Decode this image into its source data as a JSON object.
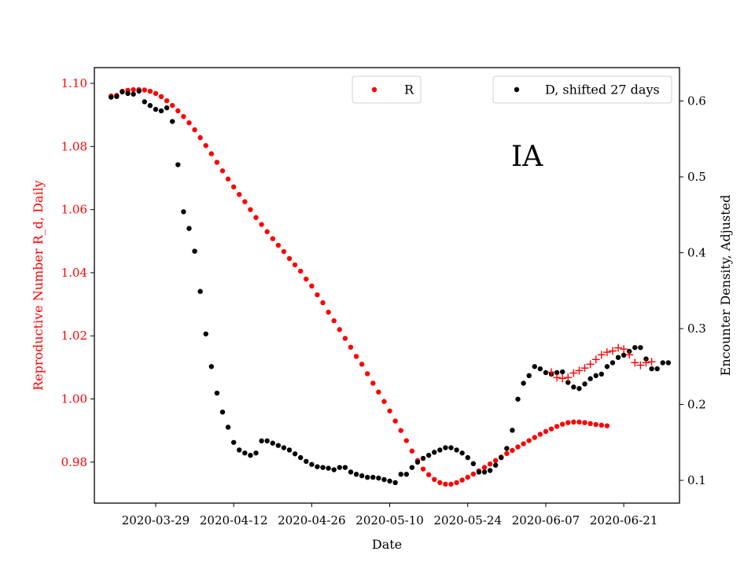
{
  "chart_data": {
    "type": "scatter",
    "annotation": "IA",
    "xlabel": "Date",
    "ylabel_left": "Reproductive Number R_d, Daily",
    "ylabel_right": "Encounter Density, Adjusted",
    "x_tick_labels": [
      "2020-03-29",
      "2020-04-12",
      "2020-04-26",
      "2020-05-10",
      "2020-05-24",
      "2020-06-07",
      "2020-06-21"
    ],
    "y_left_ticks": [
      "0.98",
      "1.00",
      "1.02",
      "1.04",
      "1.06",
      "1.08",
      "1.10"
    ],
    "y_right_ticks": [
      "0.1",
      "0.2",
      "0.3",
      "0.4",
      "0.5",
      "0.6"
    ],
    "y_left_range": [
      0.967,
      1.105
    ],
    "y_right_range": [
      0.07,
      0.644
    ],
    "x_range": [
      "2020-03-18",
      "2020-07-01"
    ],
    "left_axis_color": "#ff0000",
    "series": [
      {
        "name": "R",
        "axis": "left",
        "marker": "dot",
        "color": "#ff0000",
        "start": "2020-03-21",
        "values": [
          1.096,
          1.0962,
          1.0975,
          1.0978,
          1.098,
          1.098,
          1.0979,
          1.0975,
          1.0968,
          1.0958,
          1.0945,
          1.093,
          1.0913,
          1.0895,
          1.0875,
          1.0853,
          1.0828,
          1.0803,
          1.0777,
          1.075,
          1.0723,
          1.0697,
          1.0672,
          1.0648,
          1.0625,
          1.06,
          1.0575,
          1.0553,
          1.053,
          1.0508,
          1.0487,
          1.0467,
          1.0445,
          1.0425,
          1.0405,
          1.038,
          1.0358,
          1.033,
          1.0305,
          1.0275,
          1.0248,
          1.022,
          1.0192,
          1.0164,
          1.0135,
          1.011,
          1.008,
          1.005,
          1.0022,
          0.9992,
          0.9962,
          0.993,
          0.99,
          0.9868,
          0.9835,
          0.9805,
          0.9778,
          0.976,
          0.9745,
          0.9735,
          0.973,
          0.973,
          0.9735,
          0.9743,
          0.9752,
          0.9762,
          0.9772,
          0.9783,
          0.9794,
          0.9805,
          0.9816,
          0.9827,
          0.9837,
          0.9848,
          0.9858,
          0.9868,
          0.9878,
          0.9888,
          0.9897,
          0.9905,
          0.9913,
          0.992,
          0.9925,
          0.9927,
          0.9927,
          0.9925,
          0.9922,
          0.9919,
          0.9917,
          0.9915
        ]
      },
      {
        "name": "D, shifted 27 days",
        "axis": "right",
        "marker": "dot",
        "color": "#000000",
        "start": "2020-03-21",
        "values": [
          0.605,
          0.606,
          0.612,
          0.61,
          0.609,
          0.613,
          0.599,
          0.594,
          0.589,
          0.587,
          0.591,
          0.573,
          0.516,
          0.454,
          0.432,
          0.402,
          0.349,
          0.293,
          0.25,
          0.215,
          0.19,
          0.17,
          0.15,
          0.14,
          0.136,
          0.133,
          0.136,
          0.152,
          0.152,
          0.149,
          0.146,
          0.143,
          0.14,
          0.135,
          0.13,
          0.125,
          0.121,
          0.118,
          0.117,
          0.116,
          0.114,
          0.117,
          0.117,
          0.111,
          0.108,
          0.106,
          0.104,
          0.104,
          0.103,
          0.101,
          0.099,
          0.097,
          0.108,
          0.108,
          0.117,
          0.124,
          0.129,
          0.133,
          0.137,
          0.14,
          0.143,
          0.143,
          0.14,
          0.136,
          0.13,
          0.122,
          0.111,
          0.111,
          0.113,
          0.12,
          0.13,
          0.142,
          0.166,
          0.207,
          0.228,
          0.238,
          0.25,
          0.247,
          0.242,
          0.24,
          0.242,
          0.243,
          0.229,
          0.223,
          0.221,
          0.227,
          0.234,
          0.238,
          0.24,
          0.25,
          0.255,
          0.262,
          0.265,
          0.27,
          0.275,
          0.275,
          0.26,
          0.247,
          0.247,
          0.255,
          0.255
        ]
      },
      {
        "name": "",
        "axis": "left",
        "marker": "plus",
        "color": "#ff0000",
        "start": "2020-06-08",
        "values": [
          1.0085,
          1.0068,
          1.0065,
          1.0068,
          1.0082,
          1.009,
          1.0098,
          1.011,
          1.0125,
          1.014,
          1.0148,
          1.0152,
          1.0162,
          1.0158,
          1.014,
          1.0115,
          1.0107,
          1.0115,
          1.0118
        ]
      }
    ],
    "legend": [
      {
        "label": "R",
        "position": "upper-center",
        "color": "#ff0000"
      },
      {
        "label": "D, shifted 27 days",
        "position": "upper-right",
        "color": "#000000"
      }
    ]
  }
}
